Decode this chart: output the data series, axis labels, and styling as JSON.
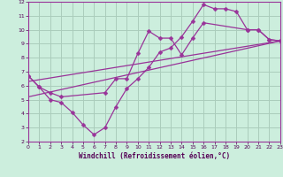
{
  "xlabel": "Windchill (Refroidissement éolien,°C)",
  "bg_color": "#cceedd",
  "grid_color": "#aaccbb",
  "line_color": "#993399",
  "xlim": [
    0,
    23
  ],
  "ylim": [
    2,
    12
  ],
  "xticks": [
    0,
    1,
    2,
    3,
    4,
    5,
    6,
    7,
    8,
    9,
    10,
    11,
    12,
    13,
    14,
    15,
    16,
    17,
    18,
    19,
    20,
    21,
    22,
    23
  ],
  "yticks": [
    2,
    3,
    4,
    5,
    6,
    7,
    8,
    9,
    10,
    11,
    12
  ],
  "line1_x": [
    0,
    1,
    2,
    3,
    4,
    5,
    6,
    7,
    8,
    9,
    10,
    11,
    12,
    13,
    14,
    15,
    16,
    17,
    18,
    19,
    20,
    21,
    22,
    23
  ],
  "line1_y": [
    6.7,
    5.9,
    5.0,
    4.8,
    4.1,
    3.2,
    2.5,
    3.0,
    4.5,
    5.8,
    6.5,
    7.3,
    8.4,
    8.7,
    9.5,
    10.6,
    11.8,
    11.5,
    11.5,
    11.3,
    10.0,
    10.0,
    9.3,
    9.2
  ],
  "line2_x": [
    0,
    1,
    2,
    3,
    7,
    8,
    9,
    10,
    11,
    12,
    13,
    14,
    15,
    16,
    20,
    21,
    22,
    23
  ],
  "line2_y": [
    6.7,
    5.9,
    5.5,
    5.2,
    5.5,
    6.5,
    6.5,
    8.3,
    9.9,
    9.4,
    9.4,
    8.2,
    9.4,
    10.5,
    10.0,
    10.0,
    9.3,
    9.2
  ],
  "line3_x": [
    0,
    23
  ],
  "line3_y": [
    6.3,
    9.2
  ],
  "line4_x": [
    0,
    23
  ],
  "line4_y": [
    5.2,
    9.2
  ]
}
